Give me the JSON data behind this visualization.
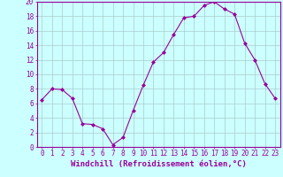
{
  "x": [
    0,
    1,
    2,
    3,
    4,
    5,
    6,
    7,
    8,
    9,
    10,
    11,
    12,
    13,
    14,
    15,
    16,
    17,
    18,
    19,
    20,
    21,
    22,
    23
  ],
  "y": [
    6.5,
    8.0,
    7.9,
    6.7,
    3.2,
    3.1,
    2.5,
    0.3,
    1.3,
    5.0,
    8.5,
    11.7,
    13.0,
    15.5,
    17.8,
    18.0,
    19.5,
    20.0,
    19.0,
    18.3,
    14.3,
    12.0,
    8.7,
    6.7
  ],
  "line_color": "#990099",
  "marker": "D",
  "marker_size": 2.0,
  "bg_color": "#ccffff",
  "grid_color": "#aacccc",
  "xlabel": "Windchill (Refroidissement éolien,°C)",
  "xlim": [
    -0.5,
    23.5
  ],
  "ylim": [
    0,
    20
  ],
  "yticks": [
    0,
    2,
    4,
    6,
    8,
    10,
    12,
    14,
    16,
    18,
    20
  ],
  "xticks": [
    0,
    1,
    2,
    3,
    4,
    5,
    6,
    7,
    8,
    9,
    10,
    11,
    12,
    13,
    14,
    15,
    16,
    17,
    18,
    19,
    20,
    21,
    22,
    23
  ],
  "label_color": "#990099",
  "tick_color": "#990099",
  "spine_color": "#990099",
  "xlabel_fontsize": 6.5,
  "tick_fontsize": 5.5,
  "linewidth": 0.8
}
